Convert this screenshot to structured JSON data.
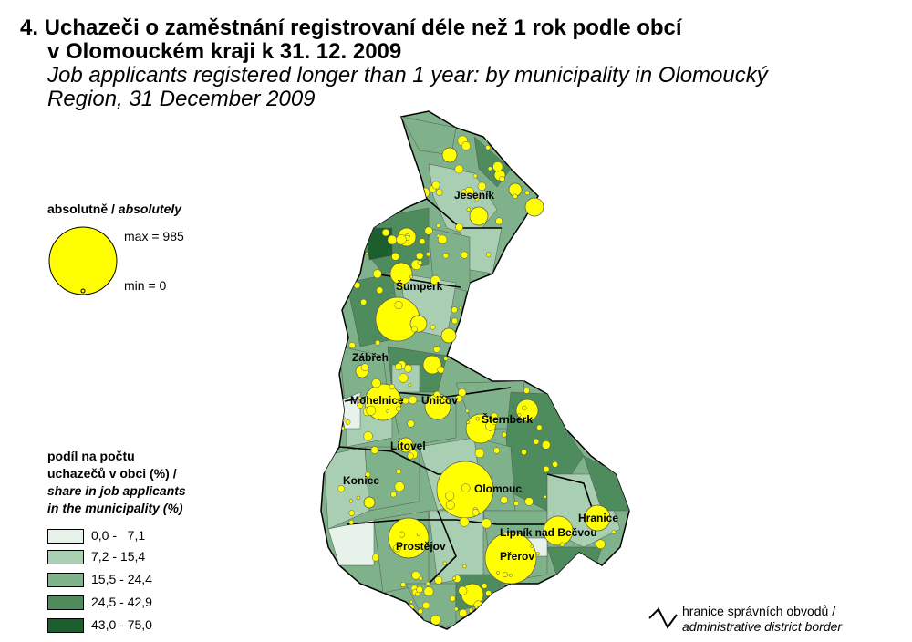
{
  "title": {
    "cz_line1": "4. Uchazeči o zaměstnání registrovaní déle než 1 rok podle obcí",
    "cz_line2": "v Olomouckém kraji k 31. 12. 2009",
    "en_line1": "Job applicants registered longer than 1 year: by municipality in Olomoucký",
    "en_line2": "Region, 31 December 2009"
  },
  "legend_absolute": {
    "title_cz": "absolutně / ",
    "title_en": "absolutely",
    "max_label": "max = 985",
    "min_label": "min = 0",
    "symbol_color": "#ffff00"
  },
  "legend_share": {
    "line1": "podíl na počtu",
    "line2": "uchazečů v obci (%) /",
    "line3": "share in job applicants",
    "line4": "in the municipality (%)",
    "classes": [
      {
        "label": "0,0 -   7,1",
        "color": "#e6f2ea"
      },
      {
        "label": "7,2 - 15,4",
        "color": "#a9cfb2"
      },
      {
        "label": "15,5 - 24,4",
        "color": "#7fb28a"
      },
      {
        "label": "24,5 - 42,9",
        "color": "#4f8c5d"
      },
      {
        "label": "43,0 - 75,0",
        "color": "#1d5e2e"
      }
    ]
  },
  "legend_border": {
    "cz": "hranice správních obvodů /",
    "en": "administrative district border"
  },
  "towns": [
    {
      "name": "Jeseník"
    },
    {
      "name": "Šumperk"
    },
    {
      "name": "Zábřeh"
    },
    {
      "name": "Mohelnice"
    },
    {
      "name": "Uničov"
    },
    {
      "name": "Šternberk"
    },
    {
      "name": "Litovel"
    },
    {
      "name": "Konice"
    },
    {
      "name": "Olomouc"
    },
    {
      "name": "Hranice"
    },
    {
      "name": "Lipník nad Bečvou"
    },
    {
      "name": "Prostějov"
    },
    {
      "name": "Přerov"
    }
  ]
}
